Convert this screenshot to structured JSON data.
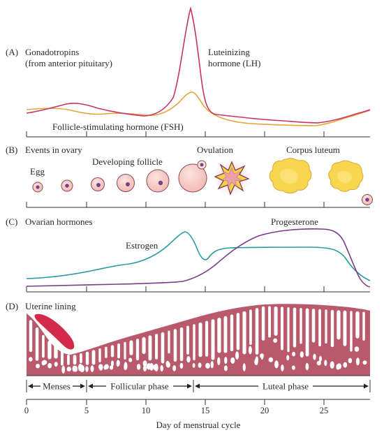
{
  "panels": {
    "a": {
      "letter": "(A)",
      "title_line1": "Gonadotropins",
      "title_line2": "(from anterior pituitary)",
      "lh_line1": "Luteinizing",
      "lh_line2": "hormone (LH)",
      "fsh_label": "Follicle-stimulating hormone (FSH)"
    },
    "b": {
      "letter": "(B)",
      "title": "Events in ovary",
      "egg": "Egg",
      "developing": "Developing follicle",
      "ovulation": "Ovulation",
      "corpus": "Corpus luteum"
    },
    "c": {
      "letter": "(C)",
      "title": "Ovarian hormones",
      "estrogen": "Estrogen",
      "progesterone": "Progesterone"
    },
    "d": {
      "letter": "(D)",
      "title": "Uterine lining"
    }
  },
  "phases": {
    "menses": "Menses",
    "follicular": "Follicular phase",
    "luteal": "Luteal phase"
  },
  "axis": {
    "label": "Day of menstrual cycle",
    "ticks": [
      "0",
      "5",
      "10",
      "15",
      "20",
      "25"
    ]
  },
  "colors": {
    "lh": "#c8336a",
    "fsh": "#e8a43a",
    "estrogen": "#2a9aa0",
    "progesterone": "#7b3c8c",
    "lining": "#b85a6c",
    "blood": "#d42a4a",
    "follicle_fill": "#f6c9c4",
    "corpus_fill": "#f7d04a"
  }
}
